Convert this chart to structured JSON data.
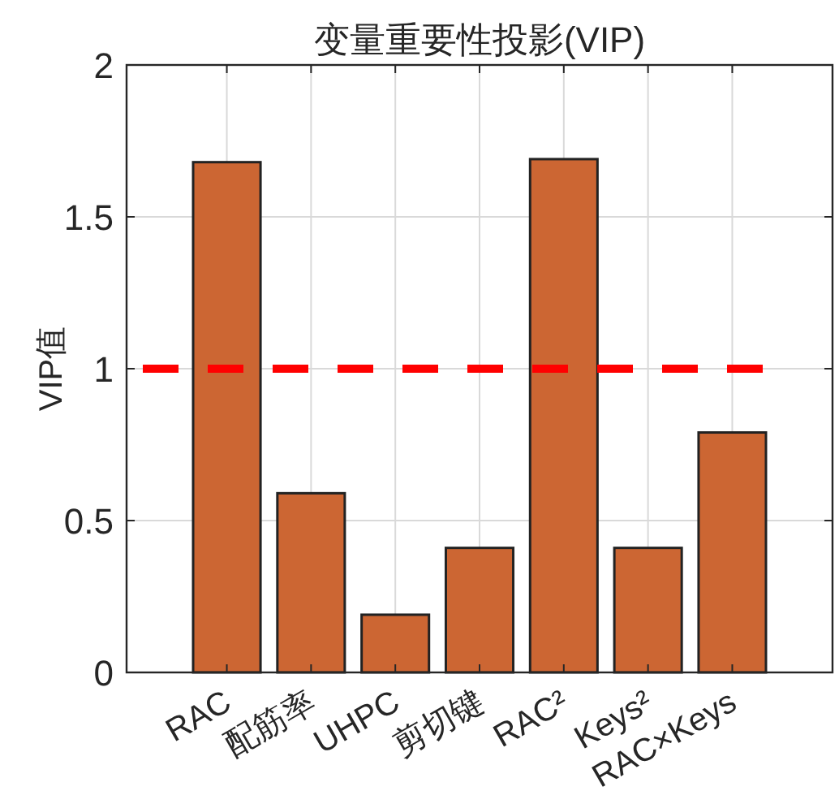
{
  "chart_data": {
    "type": "bar",
    "title": "变量重要性投影(VIP)",
    "ylabel": "VIP值",
    "categories": [
      "RAC",
      "配筋率",
      "UHPC",
      "剪切键",
      "RAC²",
      "Keys²",
      "RAC×Keys"
    ],
    "values": [
      1.68,
      0.59,
      0.19,
      0.41,
      1.69,
      0.41,
      0.79
    ],
    "color": "#cc6633",
    "ylim": [
      0,
      2
    ],
    "yticks": [
      0,
      0.5,
      1,
      1.5,
      2
    ],
    "grid": true,
    "ref_lines": [
      {
        "axis": "y",
        "value": 1,
        "color": "#ff0000",
        "line_style": "dashed"
      }
    ]
  }
}
